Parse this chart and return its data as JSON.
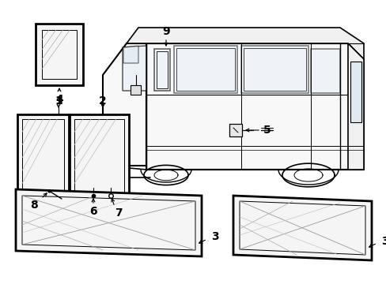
{
  "bg": "#ffffff",
  "lc": "#000000",
  "fw": 4.89,
  "fh": 3.6,
  "dpi": 100
}
